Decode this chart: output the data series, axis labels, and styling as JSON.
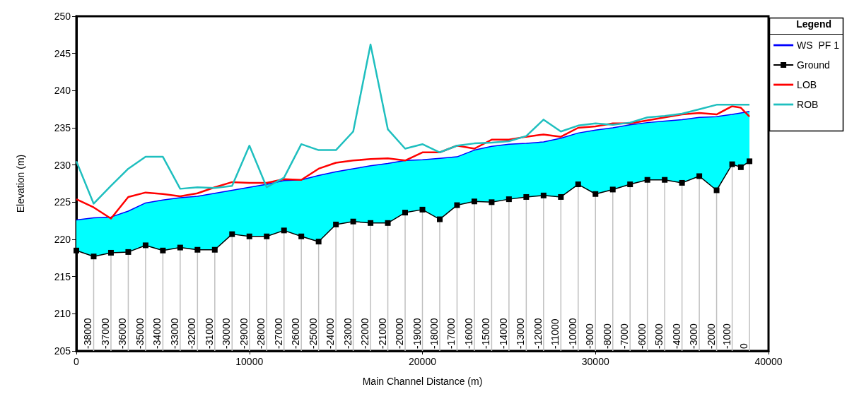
{
  "chart_data": {
    "type": "line",
    "xlabel": "Main Channel Distance (m)",
    "ylabel": "Elevation (m)",
    "legend_title": "Legend",
    "x": [
      0,
      1000,
      2000,
      3000,
      4000,
      5000,
      6000,
      7000,
      8000,
      9000,
      10000,
      11000,
      12000,
      13000,
      14000,
      15000,
      16000,
      17000,
      18000,
      19000,
      20000,
      21000,
      22000,
      23000,
      24000,
      25000,
      26000,
      27000,
      28000,
      29000,
      30000,
      31000,
      32000,
      33000,
      34000,
      35000,
      36000,
      37000,
      37900,
      38400,
      38900
    ],
    "series": [
      {
        "name": "WS  PF 1",
        "color": "#0000ff",
        "marker": "none",
        "values": [
          222.6,
          222.9,
          223.0,
          223.8,
          224.9,
          225.3,
          225.6,
          225.8,
          226.2,
          226.6,
          227.0,
          227.4,
          227.9,
          228.0,
          228.6,
          229.1,
          229.5,
          229.9,
          230.2,
          230.6,
          230.7,
          230.9,
          231.1,
          232.0,
          232.5,
          232.8,
          232.9,
          233.1,
          233.6,
          234.3,
          234.7,
          235.0,
          235.4,
          235.7,
          235.9,
          236.1,
          236.4,
          236.5,
          236.8,
          237.0,
          237.2
        ],
        "lower": [
          218.5,
          217.7,
          218.2,
          218.3,
          219.2,
          218.5,
          218.9,
          218.6,
          218.6,
          220.7,
          220.4,
          220.4,
          221.2,
          220.4,
          219.7,
          222.0,
          222.4,
          222.2,
          222.2,
          223.6,
          224.0,
          222.7,
          224.6,
          225.1,
          225.0,
          225.4,
          225.7,
          225.9,
          225.7,
          227.4,
          226.1,
          226.7,
          227.4,
          228.0,
          228.0,
          227.6,
          228.5,
          226.6,
          230.1,
          229.7,
          230.5
        ],
        "upper": [
          222.6,
          222.9,
          223.0,
          223.8,
          224.9,
          225.3,
          225.6,
          225.8,
          226.2,
          226.6,
          227.0,
          227.4,
          227.9,
          228.0,
          228.6,
          229.1,
          229.5,
          229.9,
          230.2,
          230.6,
          230.7,
          230.9,
          231.1,
          232.0,
          232.5,
          232.8,
          232.9,
          233.1,
          233.6,
          234.3,
          234.7,
          235.0,
          235.4,
          235.7,
          235.9,
          236.1,
          236.4,
          236.5,
          236.8,
          237.0,
          237.2
        ]
      },
      {
        "name": "Ground",
        "color": "#000000",
        "marker": "square",
        "values": [
          218.5,
          217.7,
          218.2,
          218.3,
          219.2,
          218.5,
          218.9,
          218.6,
          218.6,
          220.7,
          220.4,
          220.4,
          221.2,
          220.4,
          219.7,
          222.0,
          222.4,
          222.2,
          222.2,
          223.6,
          224.0,
          222.7,
          224.6,
          225.1,
          225.0,
          225.4,
          225.7,
          225.9,
          225.7,
          227.4,
          226.1,
          226.7,
          227.4,
          228.0,
          228.0,
          227.6,
          228.5,
          226.6,
          230.1,
          229.7,
          230.5
        ]
      },
      {
        "name": "LOB",
        "color": "#ff0000",
        "marker": "none",
        "values": [
          225.4,
          224.3,
          222.8,
          225.7,
          226.3,
          226.1,
          225.8,
          226.2,
          227.0,
          227.7,
          227.6,
          227.6,
          228.1,
          228.0,
          229.5,
          230.3,
          230.6,
          230.8,
          230.9,
          230.6,
          231.7,
          231.7,
          232.6,
          232.2,
          233.4,
          233.4,
          233.8,
          234.1,
          233.8,
          235.0,
          235.2,
          235.6,
          235.6,
          236.0,
          236.4,
          236.8,
          237.0,
          236.8,
          237.9,
          237.7,
          236.5
        ]
      },
      {
        "name": "ROB",
        "color": "#1fbfbf",
        "marker": "none",
        "values": [
          230.5,
          224.8,
          227.2,
          229.5,
          231.1,
          231.1,
          226.8,
          227.0,
          226.9,
          227.2,
          232.6,
          227.0,
          228.3,
          232.8,
          232.0,
          232.0,
          234.5,
          246.2,
          234.8,
          232.2,
          232.8,
          231.7,
          232.6,
          232.9,
          233.0,
          233.2,
          233.9,
          236.1,
          234.5,
          235.3,
          235.6,
          235.4,
          235.7,
          236.4,
          236.6,
          236.9,
          237.5,
          238.1,
          238.1,
          238.1,
          238.1
        ]
      }
    ],
    "xlim": [
      0,
      40000
    ],
    "ylim": [
      205,
      250
    ],
    "xticks": [
      0,
      10000,
      20000,
      30000,
      40000
    ],
    "yticks": [
      205,
      210,
      215,
      220,
      225,
      230,
      235,
      240,
      245,
      250
    ],
    "grid": false,
    "legend": "right",
    "line_style": "solid",
    "annotations": [
      {
        "text": "-38000",
        "x": 1000,
        "y": 217.7
      },
      {
        "text": "-37000",
        "x": 2000,
        "y": 218.2
      },
      {
        "text": "-36000",
        "x": 3000,
        "y": 218.3
      },
      {
        "text": "-35000",
        "x": 4000,
        "y": 219.2
      },
      {
        "text": "-34000",
        "x": 5000,
        "y": 218.5
      },
      {
        "text": "-33000",
        "x": 6000,
        "y": 218.9
      },
      {
        "text": "-32000",
        "x": 7000,
        "y": 218.6
      },
      {
        "text": "-31000",
        "x": 8000,
        "y": 218.6
      },
      {
        "text": "-30000",
        "x": 9000,
        "y": 220.7
      },
      {
        "text": "-29000",
        "x": 10000,
        "y": 220.4
      },
      {
        "text": "-28000",
        "x": 11000,
        "y": 220.4
      },
      {
        "text": "-27000",
        "x": 12000,
        "y": 221.2
      },
      {
        "text": "-26000",
        "x": 13000,
        "y": 220.4
      },
      {
        "text": "-25000",
        "x": 14000,
        "y": 219.7
      },
      {
        "text": "-24000",
        "x": 15000,
        "y": 222.0
      },
      {
        "text": "-23000",
        "x": 16000,
        "y": 222.4
      },
      {
        "text": "-22000",
        "x": 17000,
        "y": 222.2
      },
      {
        "text": "-21000",
        "x": 18000,
        "y": 222.2
      },
      {
        "text": "-20000",
        "x": 19000,
        "y": 223.6
      },
      {
        "text": "-19000",
        "x": 20000,
        "y": 224.0
      },
      {
        "text": "-18000",
        "x": 21000,
        "y": 222.7
      },
      {
        "text": "-17000",
        "x": 22000,
        "y": 224.6
      },
      {
        "text": "-16000",
        "x": 23000,
        "y": 225.1
      },
      {
        "text": "-15000",
        "x": 24000,
        "y": 225.0
      },
      {
        "text": "-14000",
        "x": 25000,
        "y": 225.4
      },
      {
        "text": "-13000",
        "x": 26000,
        "y": 225.7
      },
      {
        "text": "-12000",
        "x": 27000,
        "y": 225.9
      },
      {
        "text": "-11000",
        "x": 28000,
        "y": 225.7
      },
      {
        "text": "-10000",
        "x": 29000,
        "y": 227.4
      },
      {
        "text": "-9000",
        "x": 30000,
        "y": 226.1
      },
      {
        "text": "-8000",
        "x": 31000,
        "y": 226.7
      },
      {
        "text": "-7000",
        "x": 32000,
        "y": 227.4
      },
      {
        "text": "-6000",
        "x": 33000,
        "y": 228.0
      },
      {
        "text": "-5000",
        "x": 34000,
        "y": 228.0
      },
      {
        "text": "-4000",
        "x": 35000,
        "y": 227.6
      },
      {
        "text": "-3000",
        "x": 36000,
        "y": 228.5
      },
      {
        "text": "-2000",
        "x": 37000,
        "y": 226.6
      },
      {
        "text": "-1000",
        "x": 37900,
        "y": 230.1
      },
      {
        "text": "0",
        "x": 38900,
        "y": 230.5
      }
    ]
  }
}
